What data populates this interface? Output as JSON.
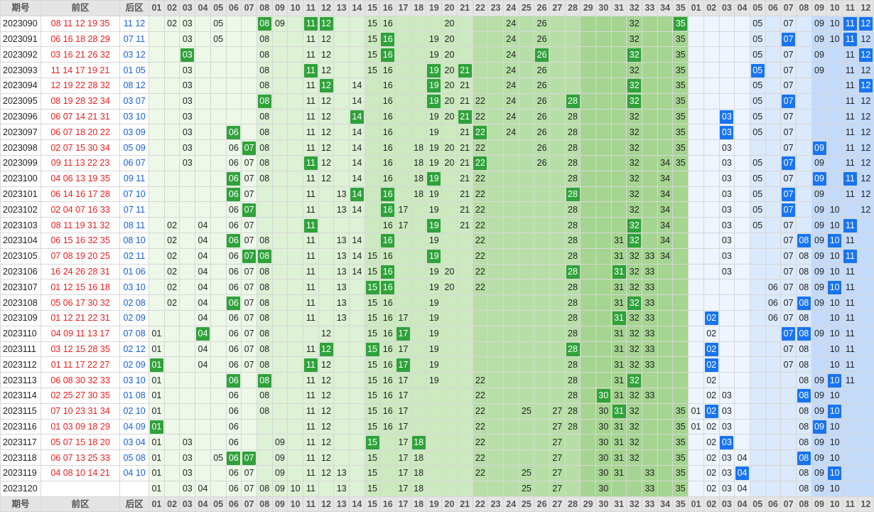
{
  "header": {
    "issue": "期号",
    "front": "前区",
    "back": "后区"
  },
  "front_nums": [
    "01",
    "02",
    "03",
    "04",
    "05",
    "06",
    "07",
    "08",
    "09",
    "10",
    "11",
    "12",
    "13",
    "14",
    "15",
    "16",
    "17",
    "18",
    "19",
    "20",
    "21",
    "22",
    "23",
    "24",
    "25",
    "26",
    "27",
    "28",
    "29",
    "30",
    "31",
    "32",
    "33",
    "34",
    "35"
  ],
  "back_nums": [
    "01",
    "02",
    "03",
    "04",
    "05",
    "06",
    "07",
    "08",
    "09",
    "10",
    "11",
    "12"
  ],
  "rows": [
    {
      "issue": "2023090",
      "front": [
        "08",
        "11",
        "12",
        "19",
        "35"
      ],
      "back": [
        "11",
        "12"
      ],
      "fs": [
        "02",
        "03",
        "05",
        "08",
        "09",
        "11",
        "12",
        "15",
        "16",
        "20",
        "24",
        "26",
        "32",
        "35"
      ],
      "bs": [
        "05",
        "07",
        "09",
        "10",
        "11",
        "12"
      ]
    },
    {
      "issue": "2023091",
      "front": [
        "06",
        "16",
        "18",
        "28",
        "29"
      ],
      "back": [
        "07",
        "11"
      ],
      "fs": [
        "03",
        "05",
        "08",
        "11",
        "12",
        "15",
        "16",
        "19",
        "20",
        "24",
        "26",
        "32",
        "35"
      ],
      "bs": [
        "05",
        "07",
        "09",
        "10",
        "11",
        "12"
      ]
    },
    {
      "issue": "2023092",
      "front": [
        "03",
        "16",
        "21",
        "26",
        "32"
      ],
      "back": [
        "03",
        "12"
      ],
      "fs": [
        "03",
        "08",
        "11",
        "12",
        "15",
        "16",
        "19",
        "20",
        "24",
        "26",
        "32",
        "35"
      ],
      "bs": [
        "05",
        "07",
        "09",
        "11",
        "12"
      ]
    },
    {
      "issue": "2023093",
      "front": [
        "11",
        "14",
        "17",
        "19",
        "21"
      ],
      "back": [
        "01",
        "05"
      ],
      "fs": [
        "03",
        "08",
        "11",
        "12",
        "15",
        "16",
        "19",
        "20",
        "21",
        "24",
        "26",
        "32",
        "35"
      ],
      "bs": [
        "05",
        "07",
        "09",
        "11",
        "12"
      ]
    },
    {
      "issue": "2023094",
      "front": [
        "12",
        "19",
        "22",
        "28",
        "32"
      ],
      "back": [
        "08",
        "12"
      ],
      "fs": [
        "03",
        "08",
        "11",
        "12",
        "14",
        "16",
        "19",
        "20",
        "21",
        "24",
        "26",
        "32",
        "35"
      ],
      "bs": [
        "05",
        "07",
        "11",
        "12"
      ]
    },
    {
      "issue": "2023095",
      "front": [
        "08",
        "19",
        "28",
        "32",
        "34"
      ],
      "back": [
        "03",
        "07"
      ],
      "fs": [
        "03",
        "08",
        "11",
        "12",
        "14",
        "16",
        "19",
        "20",
        "21",
        "22",
        "24",
        "26",
        "28",
        "32",
        "35"
      ],
      "bs": [
        "05",
        "07",
        "11",
        "12"
      ]
    },
    {
      "issue": "2023096",
      "front": [
        "06",
        "07",
        "14",
        "21",
        "31"
      ],
      "back": [
        "03",
        "10"
      ],
      "fs": [
        "03",
        "08",
        "11",
        "12",
        "14",
        "16",
        "19",
        "20",
        "21",
        "22",
        "24",
        "26",
        "28",
        "32",
        "35"
      ],
      "bs": [
        "03",
        "05",
        "07",
        "11",
        "12"
      ]
    },
    {
      "issue": "2023097",
      "front": [
        "06",
        "07",
        "18",
        "20",
        "22"
      ],
      "back": [
        "03",
        "09"
      ],
      "fs": [
        "03",
        "06",
        "08",
        "11",
        "12",
        "14",
        "16",
        "19",
        "21",
        "22",
        "24",
        "26",
        "28",
        "32",
        "35"
      ],
      "bs": [
        "03",
        "05",
        "07",
        "11",
        "12"
      ]
    },
    {
      "issue": "2023098",
      "front": [
        "02",
        "07",
        "15",
        "30",
        "34"
      ],
      "back": [
        "05",
        "09"
      ],
      "fs": [
        "03",
        "06",
        "07",
        "08",
        "11",
        "12",
        "14",
        "16",
        "18",
        "19",
        "20",
        "21",
        "22",
        "26",
        "28",
        "32",
        "35"
      ],
      "bs": [
        "03",
        "07",
        "09",
        "11",
        "12"
      ]
    },
    {
      "issue": "2023099",
      "front": [
        "09",
        "11",
        "13",
        "22",
        "23"
      ],
      "back": [
        "06",
        "07"
      ],
      "fs": [
        "03",
        "06",
        "07",
        "08",
        "11",
        "12",
        "14",
        "16",
        "18",
        "19",
        "20",
        "21",
        "22",
        "26",
        "28",
        "32",
        "34",
        "35"
      ],
      "bs": [
        "03",
        "05",
        "07",
        "09",
        "11",
        "12"
      ]
    },
    {
      "issue": "2023100",
      "front": [
        "04",
        "06",
        "13",
        "19",
        "35"
      ],
      "back": [
        "09",
        "11"
      ],
      "fs": [
        "06",
        "07",
        "08",
        "11",
        "12",
        "14",
        "16",
        "18",
        "19",
        "21",
        "22",
        "28",
        "32",
        "34"
      ],
      "bs": [
        "03",
        "05",
        "07",
        "09",
        "11",
        "12"
      ]
    },
    {
      "issue": "2023101",
      "front": [
        "06",
        "14",
        "16",
        "17",
        "28"
      ],
      "back": [
        "07",
        "10"
      ],
      "fs": [
        "06",
        "07",
        "11",
        "13",
        "14",
        "16",
        "18",
        "19",
        "21",
        "22",
        "28",
        "32",
        "34"
      ],
      "bs": [
        "03",
        "05",
        "07",
        "09",
        "11",
        "12"
      ]
    },
    {
      "issue": "2023102",
      "front": [
        "02",
        "04",
        "07",
        "16",
        "33"
      ],
      "back": [
        "07",
        "11"
      ],
      "fs": [
        "06",
        "07",
        "11",
        "13",
        "14",
        "16",
        "17",
        "19",
        "21",
        "22",
        "28",
        "32",
        "34"
      ],
      "bs": [
        "03",
        "05",
        "07",
        "09",
        "10",
        "12"
      ]
    },
    {
      "issue": "2023103",
      "front": [
        "08",
        "11",
        "19",
        "31",
        "32"
      ],
      "back": [
        "08",
        "11"
      ],
      "fs": [
        "02",
        "04",
        "06",
        "07",
        "11",
        "16",
        "17",
        "19",
        "21",
        "22",
        "28",
        "32",
        "34"
      ],
      "bs": [
        "03",
        "05",
        "07",
        "09",
        "10",
        "11"
      ]
    },
    {
      "issue": "2023104",
      "front": [
        "06",
        "15",
        "16",
        "32",
        "35"
      ],
      "back": [
        "08",
        "10"
      ],
      "fs": [
        "02",
        "04",
        "06",
        "07",
        "08",
        "11",
        "13",
        "14",
        "16",
        "19",
        "22",
        "28",
        "31",
        "32",
        "34"
      ],
      "bs": [
        "03",
        "07",
        "08",
        "09",
        "10",
        "11"
      ]
    },
    {
      "issue": "2023105",
      "front": [
        "07",
        "08",
        "19",
        "20",
        "25"
      ],
      "back": [
        "02",
        "11"
      ],
      "fs": [
        "02",
        "04",
        "06",
        "07",
        "08",
        "11",
        "13",
        "14",
        "15",
        "16",
        "19",
        "22",
        "28",
        "31",
        "32",
        "33",
        "34"
      ],
      "bs": [
        "03",
        "07",
        "08",
        "09",
        "10",
        "11"
      ]
    },
    {
      "issue": "2023106",
      "front": [
        "16",
        "24",
        "26",
        "28",
        "31"
      ],
      "back": [
        "01",
        "06"
      ],
      "fs": [
        "02",
        "04",
        "06",
        "07",
        "08",
        "11",
        "13",
        "14",
        "15",
        "16",
        "19",
        "20",
        "22",
        "28",
        "31",
        "32",
        "33"
      ],
      "bs": [
        "03",
        "07",
        "08",
        "09",
        "10",
        "11"
      ]
    },
    {
      "issue": "2023107",
      "front": [
        "01",
        "12",
        "15",
        "16",
        "18"
      ],
      "back": [
        "03",
        "10"
      ],
      "fs": [
        "02",
        "04",
        "06",
        "07",
        "08",
        "11",
        "13",
        "15",
        "16",
        "19",
        "20",
        "22",
        "28",
        "31",
        "32",
        "33"
      ],
      "bs": [
        "06",
        "07",
        "08",
        "09",
        "10",
        "11"
      ]
    },
    {
      "issue": "2023108",
      "front": [
        "05",
        "06",
        "17",
        "30",
        "32"
      ],
      "back": [
        "02",
        "08"
      ],
      "fs": [
        "02",
        "04",
        "06",
        "07",
        "08",
        "11",
        "13",
        "15",
        "16",
        "19",
        "28",
        "31",
        "32",
        "33"
      ],
      "bs": [
        "06",
        "07",
        "08",
        "09",
        "10",
        "11"
      ]
    },
    {
      "issue": "2023109",
      "front": [
        "01",
        "12",
        "21",
        "22",
        "31"
      ],
      "back": [
        "02",
        "09"
      ],
      "fs": [
        "04",
        "06",
        "07",
        "08",
        "11",
        "13",
        "15",
        "16",
        "17",
        "19",
        "28",
        "31",
        "32",
        "33"
      ],
      "bs": [
        "02",
        "06",
        "07",
        "08",
        "10",
        "11"
      ]
    },
    {
      "issue": "2023110",
      "front": [
        "04",
        "09",
        "11",
        "13",
        "17"
      ],
      "back": [
        "07",
        "08"
      ],
      "fs": [
        "01",
        "04",
        "06",
        "07",
        "08",
        "12",
        "15",
        "16",
        "17",
        "19",
        "28",
        "31",
        "32",
        "33"
      ],
      "bs": [
        "02",
        "07",
        "08",
        "09",
        "10",
        "11"
      ]
    },
    {
      "issue": "2023111",
      "front": [
        "03",
        "12",
        "15",
        "28",
        "35"
      ],
      "back": [
        "02",
        "12"
      ],
      "fs": [
        "01",
        "04",
        "06",
        "07",
        "08",
        "11",
        "12",
        "15",
        "16",
        "17",
        "19",
        "28",
        "31",
        "32",
        "33"
      ],
      "bs": [
        "02",
        "07",
        "08",
        "10",
        "11"
      ]
    },
    {
      "issue": "2023112",
      "front": [
        "01",
        "11",
        "17",
        "22",
        "27"
      ],
      "back": [
        "02",
        "09"
      ],
      "fs": [
        "01",
        "04",
        "06",
        "07",
        "08",
        "11",
        "12",
        "15",
        "16",
        "17",
        "19",
        "28",
        "31",
        "32",
        "33"
      ],
      "bs": [
        "02",
        "07",
        "08",
        "10",
        "11"
      ]
    },
    {
      "issue": "2023113",
      "front": [
        "06",
        "08",
        "30",
        "32",
        "33"
      ],
      "back": [
        "03",
        "10"
      ],
      "fs": [
        "01",
        "06",
        "08",
        "11",
        "12",
        "15",
        "16",
        "17",
        "19",
        "22",
        "28",
        "31",
        "32"
      ],
      "bs": [
        "02",
        "08",
        "09",
        "10",
        "11"
      ]
    },
    {
      "issue": "2023114",
      "front": [
        "02",
        "25",
        "27",
        "30",
        "35"
      ],
      "back": [
        "01",
        "08"
      ],
      "fs": [
        "01",
        "06",
        "08",
        "11",
        "12",
        "15",
        "16",
        "17",
        "22",
        "28",
        "30",
        "31",
        "32",
        "33"
      ],
      "bs": [
        "02",
        "03",
        "08",
        "09",
        "10"
      ]
    },
    {
      "issue": "2023115",
      "front": [
        "07",
        "10",
        "23",
        "31",
        "34"
      ],
      "back": [
        "02",
        "10"
      ],
      "fs": [
        "01",
        "06",
        "08",
        "11",
        "12",
        "15",
        "16",
        "17",
        "22",
        "25",
        "27",
        "28",
        "30",
        "31",
        "32",
        "35"
      ],
      "bs": [
        "01",
        "02",
        "03",
        "08",
        "09",
        "10"
      ]
    },
    {
      "issue": "2023116",
      "front": [
        "01",
        "03",
        "09",
        "18",
        "29"
      ],
      "back": [
        "04",
        "09"
      ],
      "fs": [
        "01",
        "06",
        "11",
        "12",
        "15",
        "16",
        "17",
        "22",
        "27",
        "28",
        "30",
        "31",
        "32",
        "35"
      ],
      "bs": [
        "01",
        "02",
        "03",
        "08",
        "09",
        "10"
      ]
    },
    {
      "issue": "2023117",
      "front": [
        "05",
        "07",
        "15",
        "18",
        "20"
      ],
      "back": [
        "03",
        "04"
      ],
      "fs": [
        "01",
        "03",
        "06",
        "09",
        "11",
        "12",
        "15",
        "17",
        "18",
        "22",
        "27",
        "30",
        "31",
        "32",
        "35"
      ],
      "bs": [
        "02",
        "03",
        "08",
        "09",
        "10"
      ]
    },
    {
      "issue": "2023118",
      "front": [
        "06",
        "07",
        "13",
        "25",
        "33"
      ],
      "back": [
        "05",
        "08"
      ],
      "fs": [
        "01",
        "03",
        "05",
        "06",
        "07",
        "09",
        "11",
        "12",
        "15",
        "17",
        "18",
        "22",
        "27",
        "30",
        "31",
        "32",
        "35"
      ],
      "bs": [
        "02",
        "03",
        "04",
        "08",
        "09",
        "10"
      ]
    },
    {
      "issue": "2023119",
      "front": [
        "04",
        "08",
        "10",
        "14",
        "21"
      ],
      "back": [
        "04",
        "10"
      ],
      "fs": [
        "01",
        "03",
        "06",
        "07",
        "09",
        "11",
        "12",
        "13",
        "15",
        "17",
        "18",
        "22",
        "25",
        "27",
        "30",
        "31",
        "33",
        "35"
      ],
      "bs": [
        "02",
        "03",
        "04",
        "08",
        "09",
        "10"
      ]
    },
    {
      "issue": "2023120",
      "front": [],
      "back": [],
      "fs": [
        "01",
        "03",
        "04",
        "06",
        "07",
        "08",
        "09",
        "10",
        "11",
        "13",
        "15",
        "17",
        "18",
        "25",
        "27",
        "30",
        "33",
        "35"
      ],
      "bs": [
        "02",
        "03",
        "04",
        "08",
        "09",
        "10"
      ]
    }
  ],
  "colors": {
    "front_red": "#e8201f",
    "back_blue": "#1560d8",
    "hit_green": "#2fa23a",
    "hit_blue": "#1874f0"
  }
}
